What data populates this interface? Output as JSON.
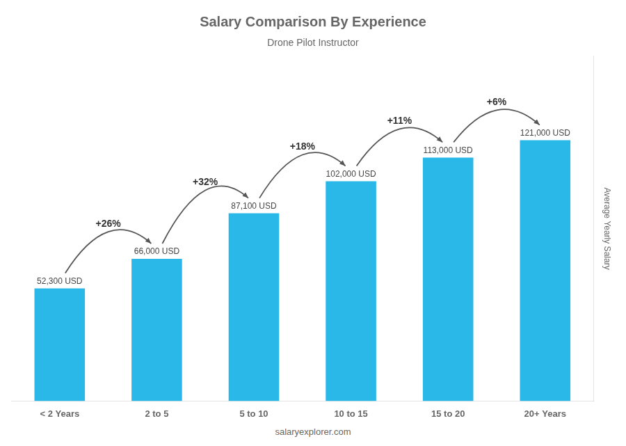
{
  "chart_data": {
    "type": "bar",
    "title": "Salary Comparison By Experience",
    "subtitle": "Drone Pilot Instructor",
    "categories": [
      "< 2 Years",
      "2 to 5",
      "5 to 10",
      "10 to 15",
      "15 to 20",
      "20+ Years"
    ],
    "values": [
      52300,
      66000,
      87100,
      102000,
      113000,
      121000
    ],
    "value_labels": [
      "52,300 USD",
      "66,000 USD",
      "87,100 USD",
      "102,000 USD",
      "113,000 USD",
      "121,000 USD"
    ],
    "data_labels": true,
    "color": "#29B8E8",
    "ylabel": "Average Yearly Salary",
    "ylim": [
      0,
      160000
    ],
    "yticks": [],
    "tick_labels": "x",
    "grid": false,
    "annotations": [
      "+26%",
      "+32%",
      "+18%",
      "+11%",
      "+6%"
    ],
    "watermark": "salaryexplorer.com"
  }
}
